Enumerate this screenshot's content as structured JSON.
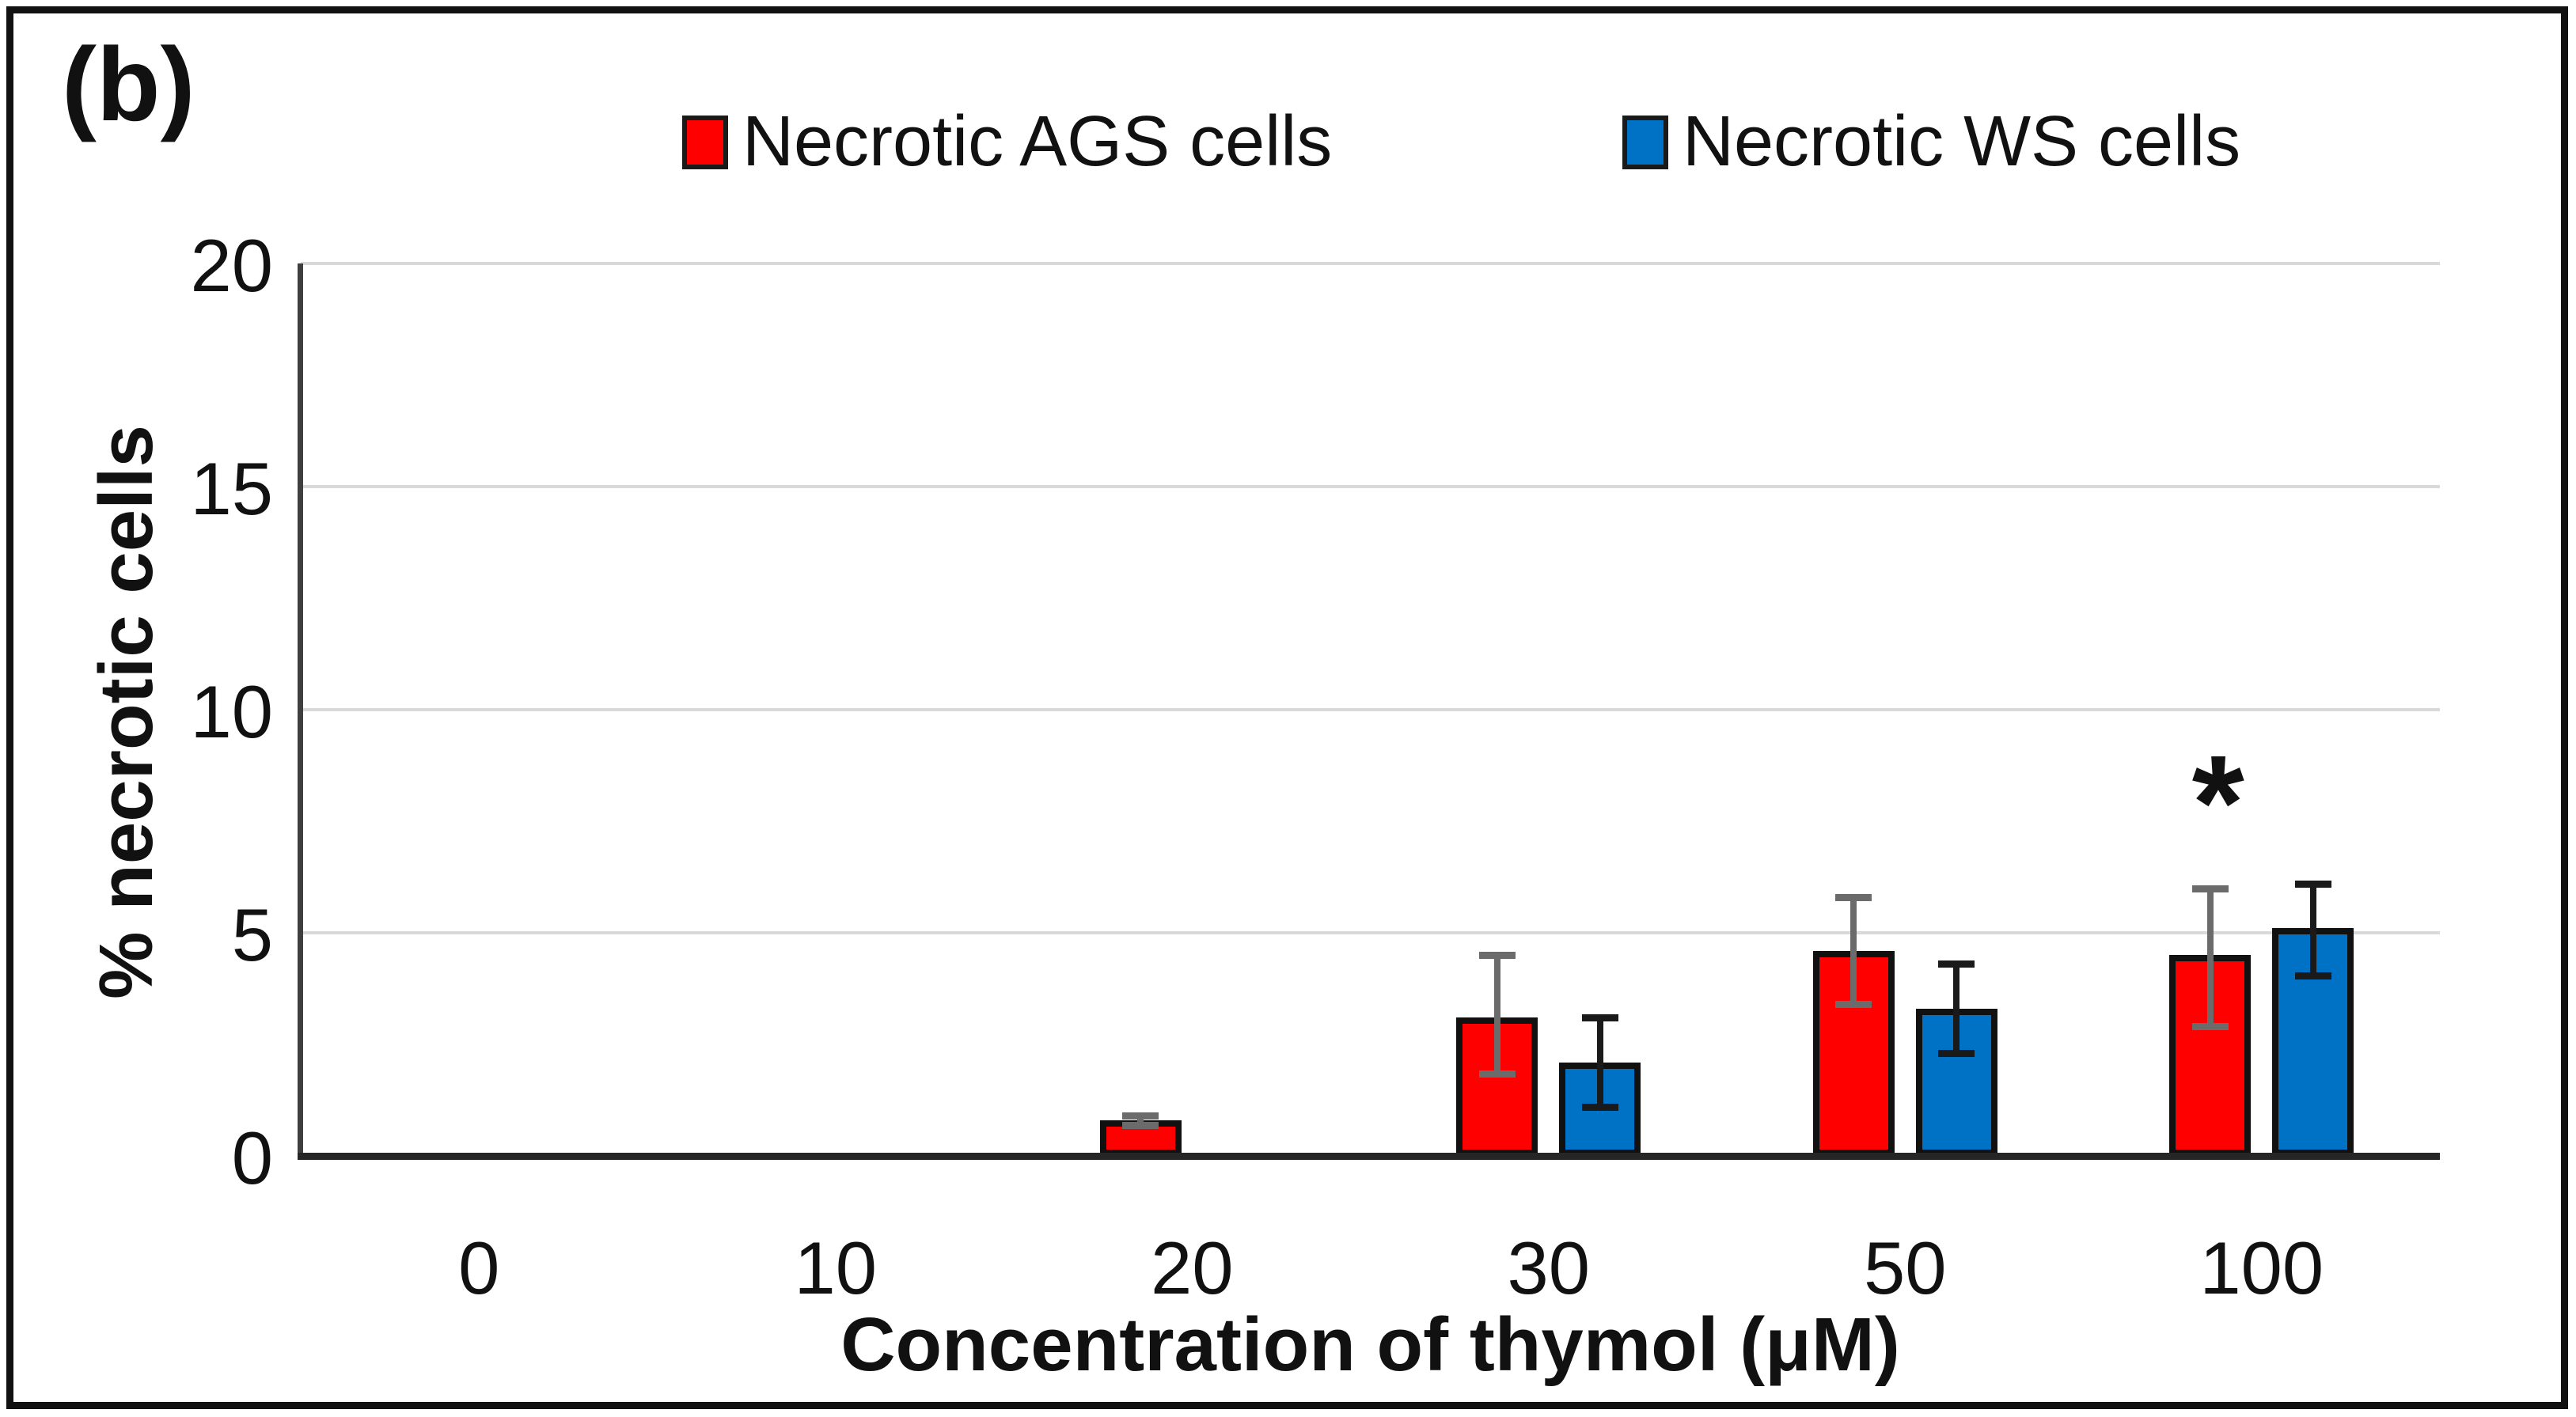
{
  "figure_label": "(b)",
  "legend": {
    "items": [
      {
        "label": "Necrotic AGS cells",
        "color": "#fe0000"
      },
      {
        "label": "Necrotic WS cells",
        "color": "#0072c5"
      }
    ]
  },
  "chart_data": {
    "type": "bar",
    "title": "",
    "xlabel": "Concentration of thymol (μM)",
    "ylabel": "% necrotic cells",
    "categories": [
      "0",
      "10",
      "20",
      "30",
      "50",
      "100"
    ],
    "ylim": [
      0,
      20
    ],
    "yticks": [
      0,
      5,
      10,
      15,
      20
    ],
    "grid": true,
    "legend_position": "top",
    "series": [
      {
        "name": "Necrotic AGS cells",
        "color": "#fe0000",
        "error_color": "#6b6b6b",
        "values": [
          0,
          0,
          0.8,
          3.1,
          4.6,
          4.5
        ],
        "error_high": [
          0,
          0,
          0.1,
          1.4,
          1.2,
          1.5
        ],
        "error_low": [
          0,
          0,
          0.1,
          1.25,
          1.2,
          1.6
        ]
      },
      {
        "name": "Necrotic WS cells",
        "color": "#0072c5",
        "error_color": "#1a1a1a",
        "values": [
          0,
          0,
          0,
          2.1,
          3.3,
          5.1
        ],
        "error_high": [
          0,
          0,
          0,
          1.0,
          1.0,
          1.0
        ],
        "error_low": [
          0,
          0,
          0,
          1.0,
          1.0,
          1.05
        ]
      }
    ],
    "annotations": [
      {
        "text": "*",
        "category_index": 5,
        "series_index": 0,
        "y": 7.9
      }
    ]
  }
}
